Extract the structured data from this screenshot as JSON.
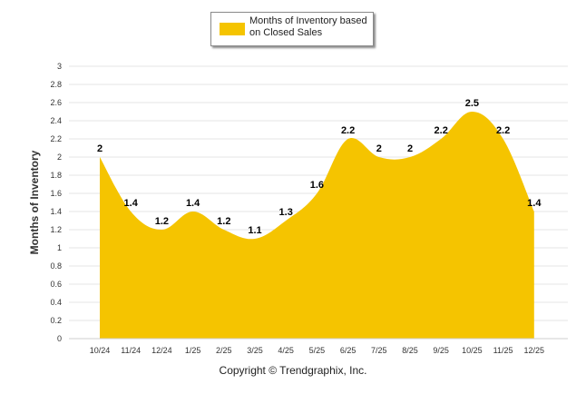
{
  "chart_data": {
    "type": "area",
    "title": "",
    "xlabel": "",
    "ylabel": "Months of Inventory",
    "categories": [
      "10/24",
      "11/24",
      "12/24",
      "1/25",
      "2/25",
      "3/25",
      "4/25",
      "5/25",
      "6/25",
      "7/25",
      "8/25",
      "9/25",
      "10/25",
      "11/25",
      "12/25"
    ],
    "series": [
      {
        "name": "Months of Inventory based on Closed Sales",
        "values": [
          2,
          1.4,
          1.2,
          1.4,
          1.2,
          1.1,
          1.3,
          1.6,
          2.2,
          2,
          2,
          2.2,
          2.5,
          2.2,
          1.4
        ],
        "labels": [
          "2",
          "1.4",
          "1.2",
          "1.4",
          "1.2",
          "1.1",
          "1.3",
          "1.6",
          "2.2",
          "2",
          "2",
          "2.2",
          "2.5",
          "2.2",
          "1.4"
        ],
        "color": "#f5c400"
      }
    ],
    "ylim": [
      0,
      3
    ],
    "yticks": [
      "0",
      "0.2",
      "0.4",
      "0.6",
      "0.8",
      "1",
      "1.2",
      "1.4",
      "1.6",
      "1.8",
      "2",
      "2.2",
      "2.4",
      "2.6",
      "2.8",
      "3"
    ],
    "grid": true,
    "legend": "top-center"
  },
  "legend": {
    "label": "Months of Inventory based on Closed Sales"
  },
  "footer": {
    "copyright": "Copyright © Trendgraphix, Inc."
  }
}
